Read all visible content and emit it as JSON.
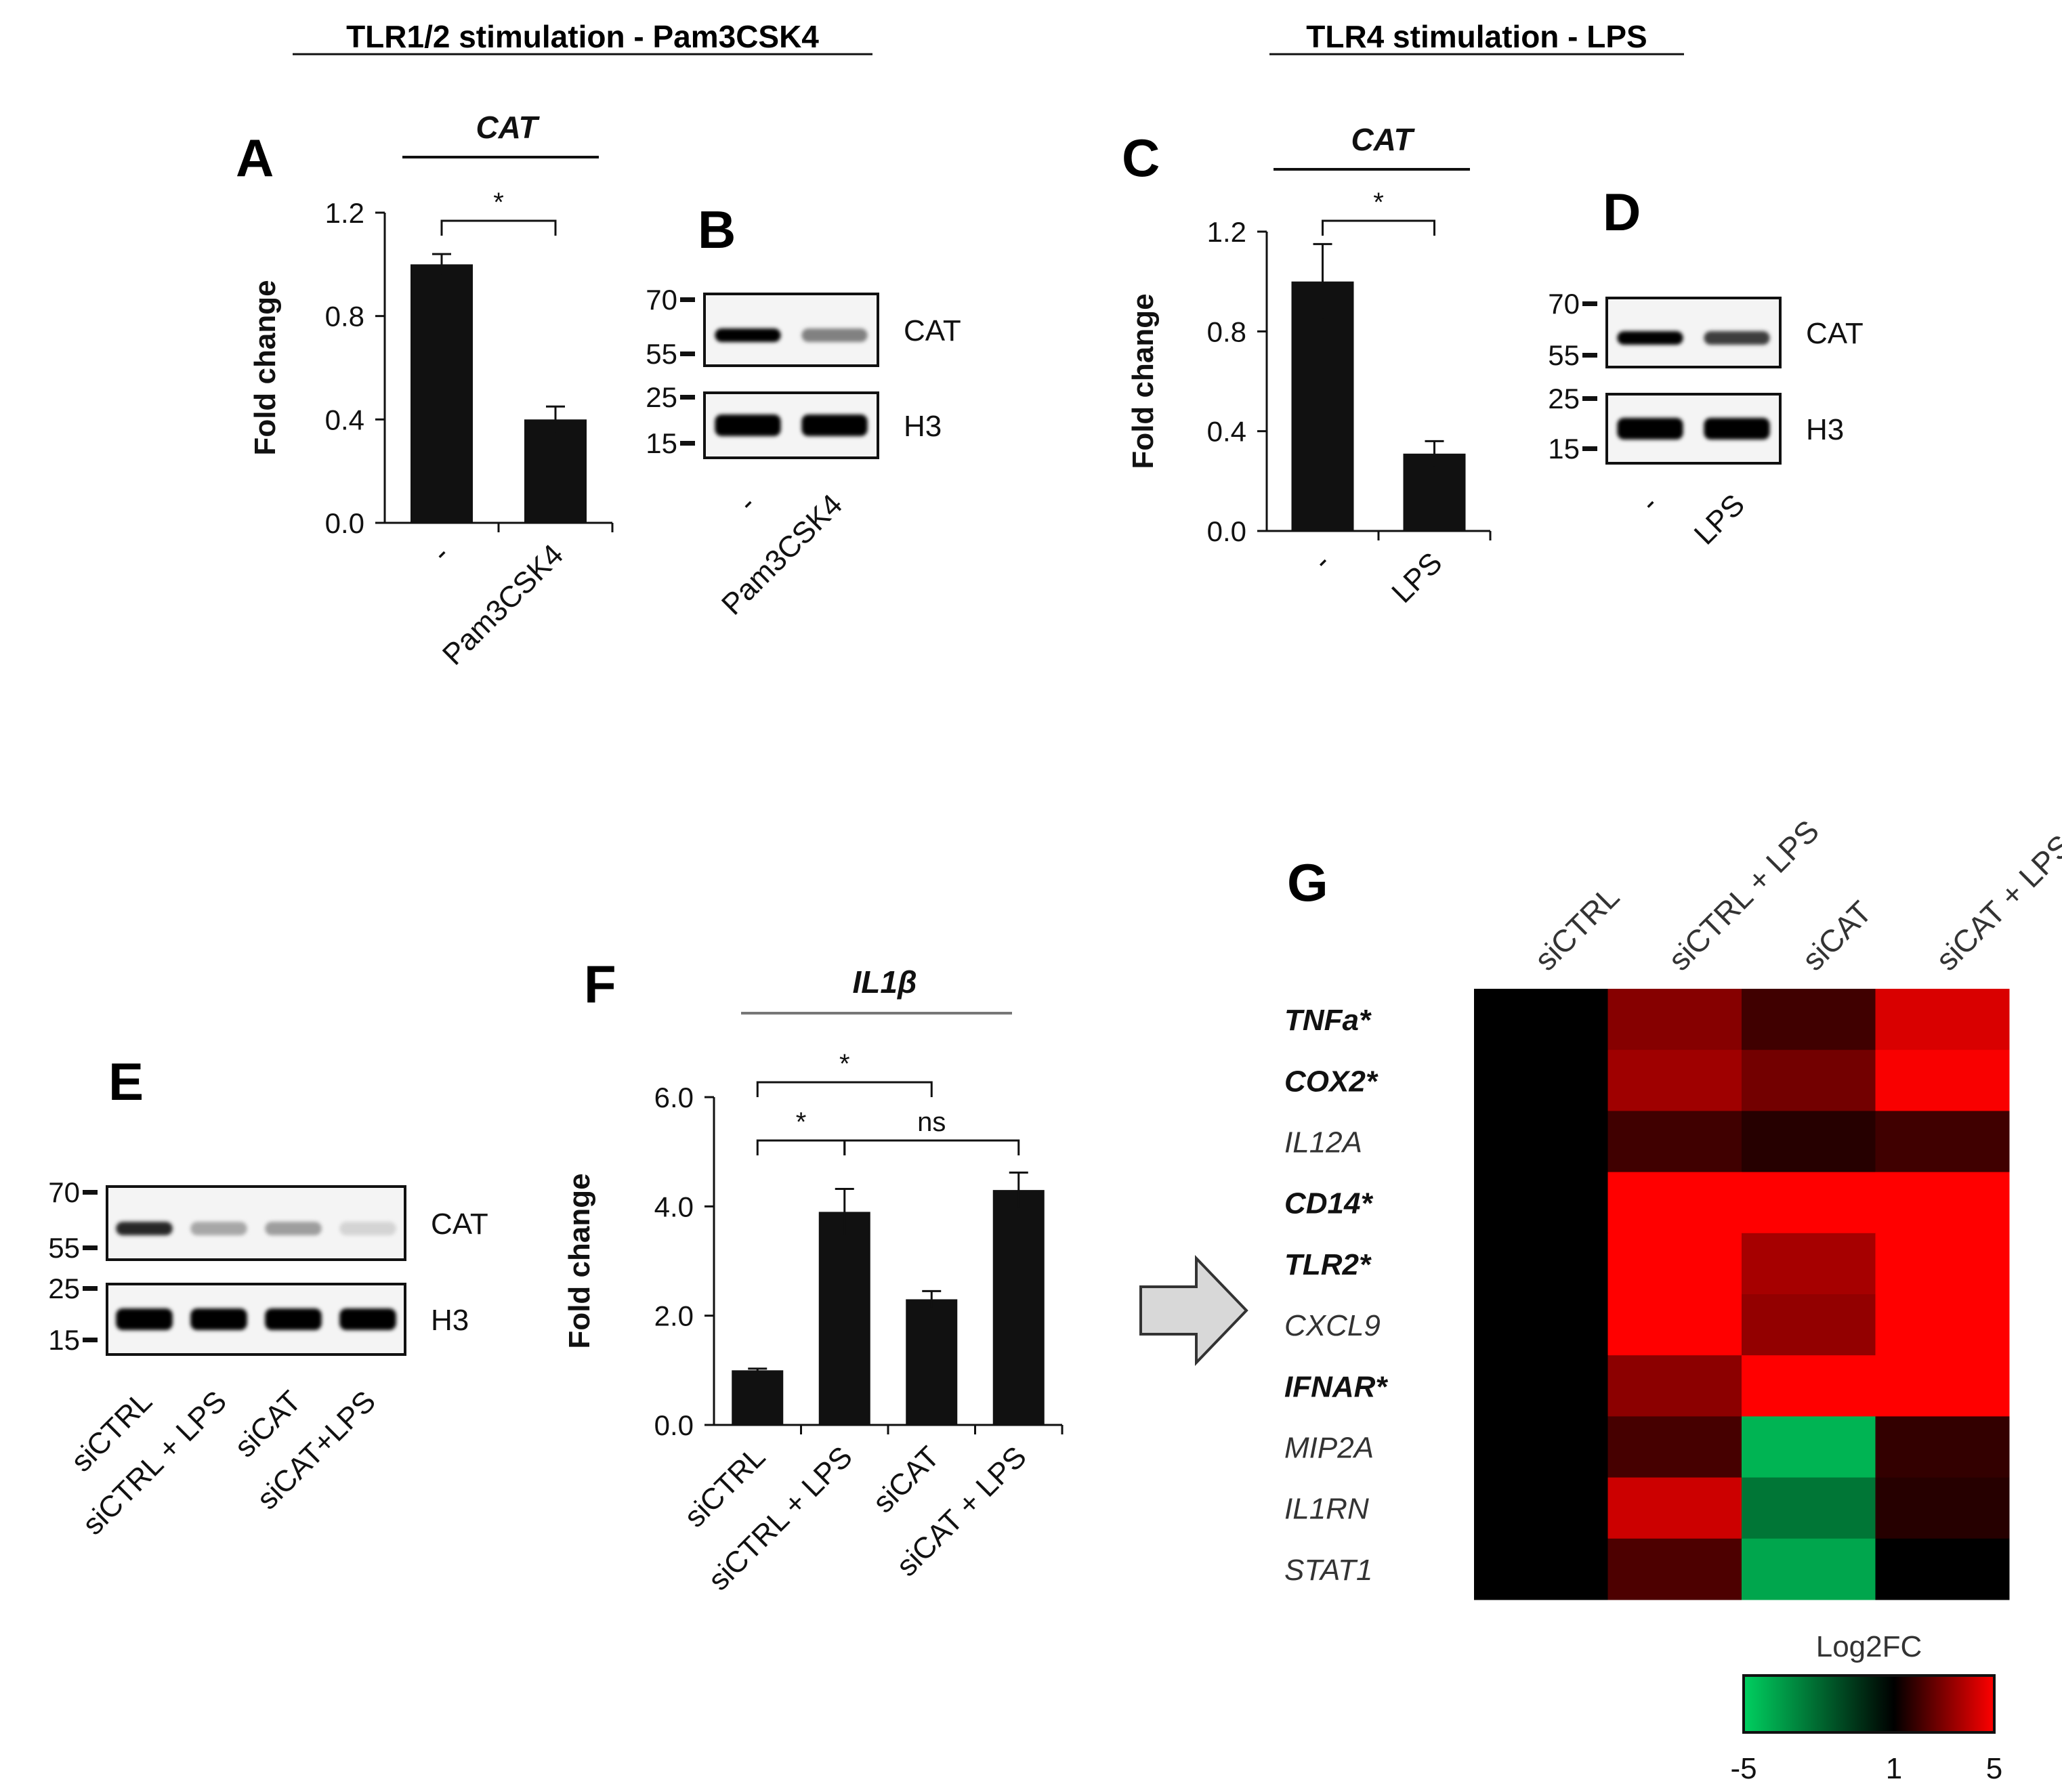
{
  "headers": {
    "left": "TLR1/2 stimulation - Pam3CSK4",
    "right": "TLR4 stimulation - LPS"
  },
  "panel_letters": {
    "A": "A",
    "B": "B",
    "C": "C",
    "D": "D",
    "E": "E",
    "F": "F",
    "G": "G"
  },
  "blot_labels": {
    "mw_70": "70",
    "mw_55": "55",
    "mw_25": "25",
    "mw_15": "15",
    "cat": "CAT",
    "h3": "H3"
  },
  "colors": {
    "bar": "#111111",
    "heat_low": "#00d060",
    "heat_mid": "#000000",
    "heat_high": "#ff0000"
  },
  "chart_data": [
    {
      "id": "A",
      "type": "bar",
      "title": "CAT",
      "ylabel": "Fold change",
      "categories": [
        "-",
        "Pam3CSK4"
      ],
      "values": [
        1.0,
        0.4
      ],
      "errors": [
        0.04,
        0.05
      ],
      "ylim": [
        0,
        1.2
      ],
      "yticks": [
        "0.0",
        "0.4",
        "0.8",
        "1.2"
      ],
      "significance": [
        {
          "from": 0,
          "to": 1,
          "label": "*"
        }
      ]
    },
    {
      "id": "B",
      "type": "blot",
      "lanes": [
        "-",
        "Pam3CSK4"
      ],
      "cat_intensity": [
        1.0,
        0.45
      ],
      "h3_intensity": [
        1.0,
        1.0
      ]
    },
    {
      "id": "C",
      "type": "bar",
      "title": "CAT",
      "ylabel": "Fold change",
      "categories": [
        "-",
        "LPS"
      ],
      "values": [
        1.0,
        0.31
      ],
      "errors": [
        0.15,
        0.05
      ],
      "ylim": [
        0,
        1.2
      ],
      "yticks": [
        "0.0",
        "0.4",
        "0.8",
        "1.2"
      ],
      "significance": [
        {
          "from": 0,
          "to": 1,
          "label": "*"
        }
      ]
    },
    {
      "id": "D",
      "type": "blot",
      "lanes": [
        "-",
        "LPS"
      ],
      "cat_intensity": [
        1.0,
        0.75
      ],
      "h3_intensity": [
        1.0,
        1.0
      ]
    },
    {
      "id": "E",
      "type": "blot",
      "lanes": [
        "siCTRL",
        "siCTRL + LPS",
        "siCAT",
        "siCAT+LPS"
      ],
      "cat_intensity": [
        0.85,
        0.28,
        0.32,
        0.08
      ],
      "h3_intensity": [
        1.0,
        1.0,
        1.0,
        1.0
      ]
    },
    {
      "id": "F",
      "type": "bar",
      "title": "IL1β",
      "ylabel": "Fold change",
      "categories": [
        "siCTRL",
        "siCTRL + LPS",
        "siCAT",
        "siCAT + LPS"
      ],
      "values": [
        1.0,
        3.9,
        2.3,
        4.3
      ],
      "errors": [
        0.03,
        0.42,
        0.15,
        0.32
      ],
      "ylim": [
        0,
        6
      ],
      "yticks": [
        "0.0",
        "2.0",
        "4.0",
        "6.0"
      ],
      "significance": [
        {
          "from": 0,
          "to": 1,
          "label": "*"
        },
        {
          "from": 0,
          "to": 2,
          "label": "*"
        },
        {
          "from": 1,
          "to": 3,
          "label": "ns"
        }
      ]
    },
    {
      "id": "G",
      "type": "heatmap",
      "columns": [
        "siCTRL",
        "siCTRL + LPS",
        "siCAT",
        "siCAT + LPS"
      ],
      "rows": [
        {
          "label": "TNFa*",
          "bold": true
        },
        {
          "label": "COX2*",
          "bold": true
        },
        {
          "label": "IL12A",
          "bold": false
        },
        {
          "label": "CD14*",
          "bold": true
        },
        {
          "label": "TLR2*",
          "bold": true
        },
        {
          "label": "CXCL9",
          "bold": false
        },
        {
          "label": "IFNAR*",
          "bold": true
        },
        {
          "label": "MIP2A",
          "bold": false
        },
        {
          "label": "IL1RN",
          "bold": false
        },
        {
          "label": "STAT1",
          "bold": false
        }
      ],
      "values": [
        [
          1,
          3.1,
          2.0,
          4.4
        ],
        [
          1,
          3.5,
          2.8,
          4.9
        ],
        [
          1,
          2.0,
          1.6,
          2.0
        ],
        [
          1,
          5.0,
          5.0,
          5.0
        ],
        [
          1,
          5.0,
          3.6,
          5.0
        ],
        [
          1,
          5.0,
          3.3,
          5.0
        ],
        [
          1,
          3.2,
          5.0,
          5.0
        ],
        [
          1,
          2.1,
          -4.2,
          1.8
        ],
        [
          1,
          4.2,
          -2.4,
          1.6
        ],
        [
          1,
          2.2,
          -3.8,
          1.0
        ]
      ],
      "legend": {
        "title": "Log2FC",
        "min": -5,
        "mid": 1,
        "max": 5,
        "tick_labels": [
          "-5",
          "1",
          "5"
        ]
      }
    }
  ]
}
